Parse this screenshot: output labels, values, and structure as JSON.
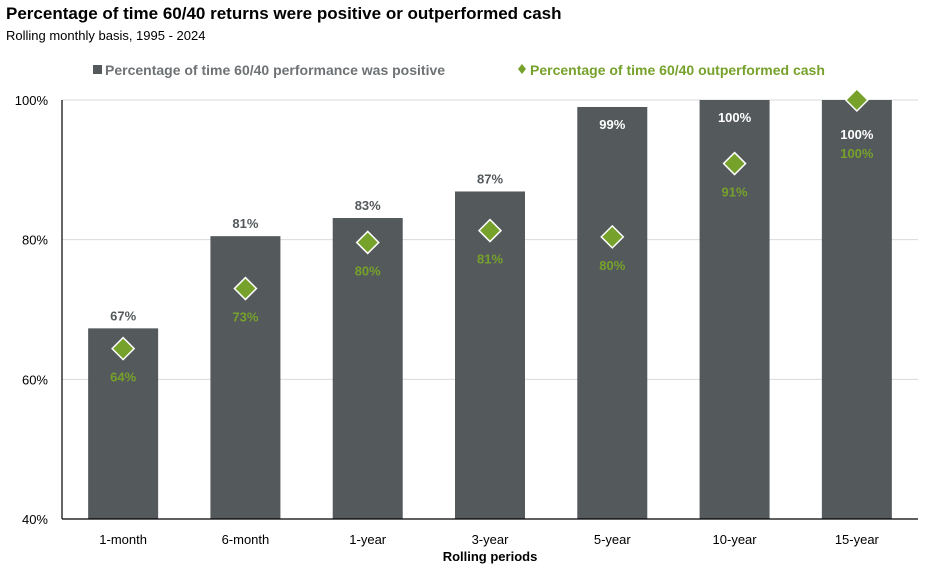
{
  "title": "Percentage of time 60/40 returns were positive or outperformed cash",
  "subtitle": "Rolling monthly basis, 1995 - 2024",
  "chart_data": {
    "type": "bar",
    "title": "Percentage of time 60/40 returns were positive or outperformed cash",
    "subtitle": "Rolling monthly basis, 1995 - 2024",
    "xlabel": "Rolling periods",
    "ylabel": "",
    "ylim": [
      40,
      100
    ],
    "yticks": [
      "40%",
      "60%",
      "80%",
      "100%"
    ],
    "ytick_values": [
      40,
      60,
      80,
      100
    ],
    "grid": true,
    "legend_placement": "top",
    "categories": [
      "1-month",
      "6-month",
      "1-year",
      "3-year",
      "5-year",
      "10-year",
      "15-year"
    ],
    "series": [
      {
        "name": "Percentage of time 60/40 performance was positive",
        "type": "bar",
        "color": "#54595c",
        "values": [
          67.3,
          80.5,
          83.1,
          86.9,
          99,
          100,
          100
        ],
        "labels": [
          "67%",
          "81%",
          "83%",
          "87%",
          "99%",
          "100%",
          "100%"
        ]
      },
      {
        "name": "Percentage of time 60/40 outperformed cash",
        "type": "scatter",
        "marker": "diamond",
        "color": "#76a12b",
        "values": [
          64.4,
          73,
          79.6,
          81.3,
          80.4,
          90.9,
          100
        ],
        "labels": [
          "64%",
          "73%",
          "80%",
          "81%",
          "80%",
          "91%",
          "100%"
        ]
      }
    ]
  }
}
